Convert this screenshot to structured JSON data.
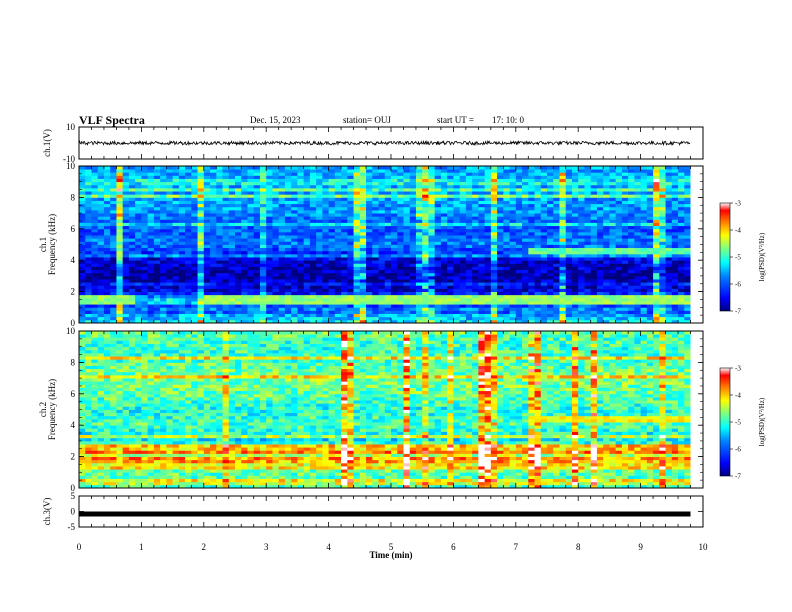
{
  "header": {
    "title": "VLF Spectra",
    "date": "Dec. 15, 2023",
    "station": "station= OUJ",
    "start_label": "start  UT  =",
    "start_time": "17: 10: 0"
  },
  "colors": {
    "colormap": [
      "#00007f",
      "#0000ff",
      "#0080ff",
      "#00ffff",
      "#80ff80",
      "#ffff00",
      "#ff8000",
      "#ff0000",
      "#ffffff"
    ],
    "waveform": "#000000"
  },
  "chart_data": [
    {
      "type": "line",
      "name": "ch1-waveform",
      "ylabel": "ch.1(V)",
      "ylim": [
        -10,
        10
      ],
      "yticks": [
        10,
        -10
      ],
      "x_range_min": [
        0,
        9.8
      ],
      "description_level": "noise amplitude about ±1 V centred at 0 V"
    },
    {
      "type": "heatmap",
      "name": "ch1-spectrogram",
      "ylabel": "ch.1\nFrequency (kHz)",
      "ylim": [
        0,
        10
      ],
      "yticks": [
        0,
        2,
        4,
        6,
        8,
        10
      ],
      "x_range_min": [
        0,
        9.8
      ],
      "colorbar": {
        "label": "log(PSD)(V²/Hz)",
        "range": [
          -7,
          -3
        ],
        "ticks": [
          -3,
          -4,
          -5,
          -6,
          -7
        ]
      },
      "log_psd_profile": [
        {
          "f": 0.0,
          "v": -5.2
        },
        {
          "f": 0.5,
          "v": -5.6
        },
        {
          "f": 1.0,
          "v": -6.4
        },
        {
          "f": 1.4,
          "v": -5.0
        },
        {
          "f": 2.0,
          "v": -6.6
        },
        {
          "f": 3.0,
          "v": -6.9
        },
        {
          "f": 4.0,
          "v": -6.6
        },
        {
          "f": 5.0,
          "v": -5.8
        },
        {
          "f": 6.0,
          "v": -6.0
        },
        {
          "f": 7.0,
          "v": -5.7
        },
        {
          "f": 8.0,
          "v": -5.6
        },
        {
          "f": 9.0,
          "v": -5.5
        },
        {
          "f": 10.0,
          "v": -5.6
        }
      ]
    },
    {
      "type": "heatmap",
      "name": "ch2-spectrogram",
      "ylabel": "ch.2\nFrequency (kHz)",
      "ylim": [
        0,
        10
      ],
      "yticks": [
        0,
        2,
        4,
        6,
        8,
        10
      ],
      "x_range_min": [
        0,
        9.8
      ],
      "colorbar": {
        "label": "log(PSD)(V²/Hz)",
        "range": [
          -7,
          -3
        ],
        "ticks": [
          -3,
          -4,
          -5,
          -6,
          -7
        ]
      },
      "log_psd_profile": [
        {
          "f": 0.0,
          "v": -5.0
        },
        {
          "f": 1.0,
          "v": -4.8
        },
        {
          "f": 2.0,
          "v": -4.6
        },
        {
          "f": 2.5,
          "v": -4.0
        },
        {
          "f": 3.0,
          "v": -5.3
        },
        {
          "f": 4.0,
          "v": -4.9
        },
        {
          "f": 5.0,
          "v": -5.1
        },
        {
          "f": 6.0,
          "v": -4.8
        },
        {
          "f": 7.0,
          "v": -4.7
        },
        {
          "f": 8.0,
          "v": -4.9
        },
        {
          "f": 9.0,
          "v": -5.0
        },
        {
          "f": 10.0,
          "v": -4.8
        }
      ]
    },
    {
      "type": "line",
      "name": "ch3-waveform",
      "ylabel": "ch.3(V)",
      "ylim": [
        -5,
        5
      ],
      "yticks": [
        5,
        0,
        -5
      ],
      "x_range_min": [
        0,
        9.8
      ],
      "level_V": -0.8
    }
  ],
  "xaxis": {
    "label": "Time  (min)",
    "ticks": [
      "0",
      "1",
      "2",
      "3",
      "4",
      "5",
      "6",
      "7",
      "8",
      "9",
      "10"
    ],
    "range": [
      0,
      10
    ]
  }
}
